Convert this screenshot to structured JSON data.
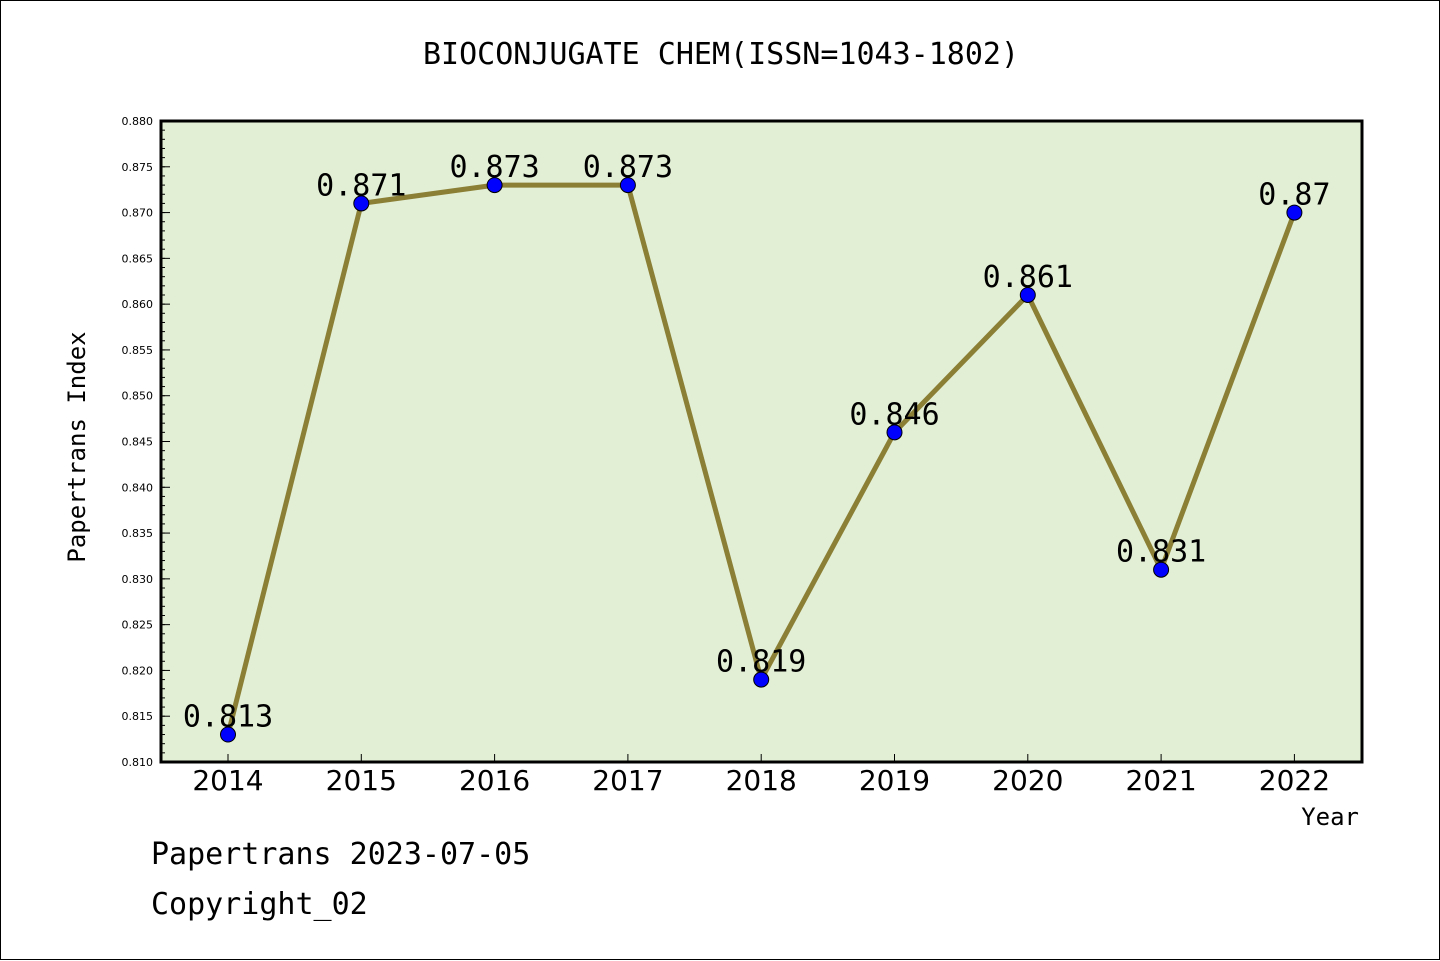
{
  "title": "BIOCONJUGATE CHEM(ISSN=1043-1802)",
  "footer": {
    "line1": "Papertrans 2023-07-05",
    "line2": "Copyright_02"
  },
  "colors": {
    "plot_bg": "#e2efd5",
    "line": "#8b7f35",
    "marker": "#0000ff"
  },
  "chart_data": {
    "type": "line",
    "title": "BIOCONJUGATE CHEM(ISSN=1043-1802)",
    "xlabel": "Year",
    "ylabel": "Papertrans Index",
    "categories": [
      "2014",
      "2015",
      "2016",
      "2017",
      "2018",
      "2019",
      "2020",
      "2021",
      "2022"
    ],
    "series": [
      {
        "values": [
          0.813,
          0.871,
          0.873,
          0.873,
          0.819,
          0.846,
          0.861,
          0.831,
          0.87
        ],
        "labels": [
          "0.813",
          "0.871",
          "0.873",
          "0.873",
          "0.819",
          "0.846",
          "0.861",
          "0.831",
          "0.87"
        ]
      }
    ],
    "ylim": [
      0.81,
      0.88
    ],
    "yticks": [
      "0.810",
      "0.815",
      "0.820",
      "0.825",
      "0.830",
      "0.835",
      "0.840",
      "0.845",
      "0.850",
      "0.855",
      "0.860",
      "0.865",
      "0.870",
      "0.875",
      "0.880"
    ],
    "grid": false,
    "legend": "none"
  }
}
